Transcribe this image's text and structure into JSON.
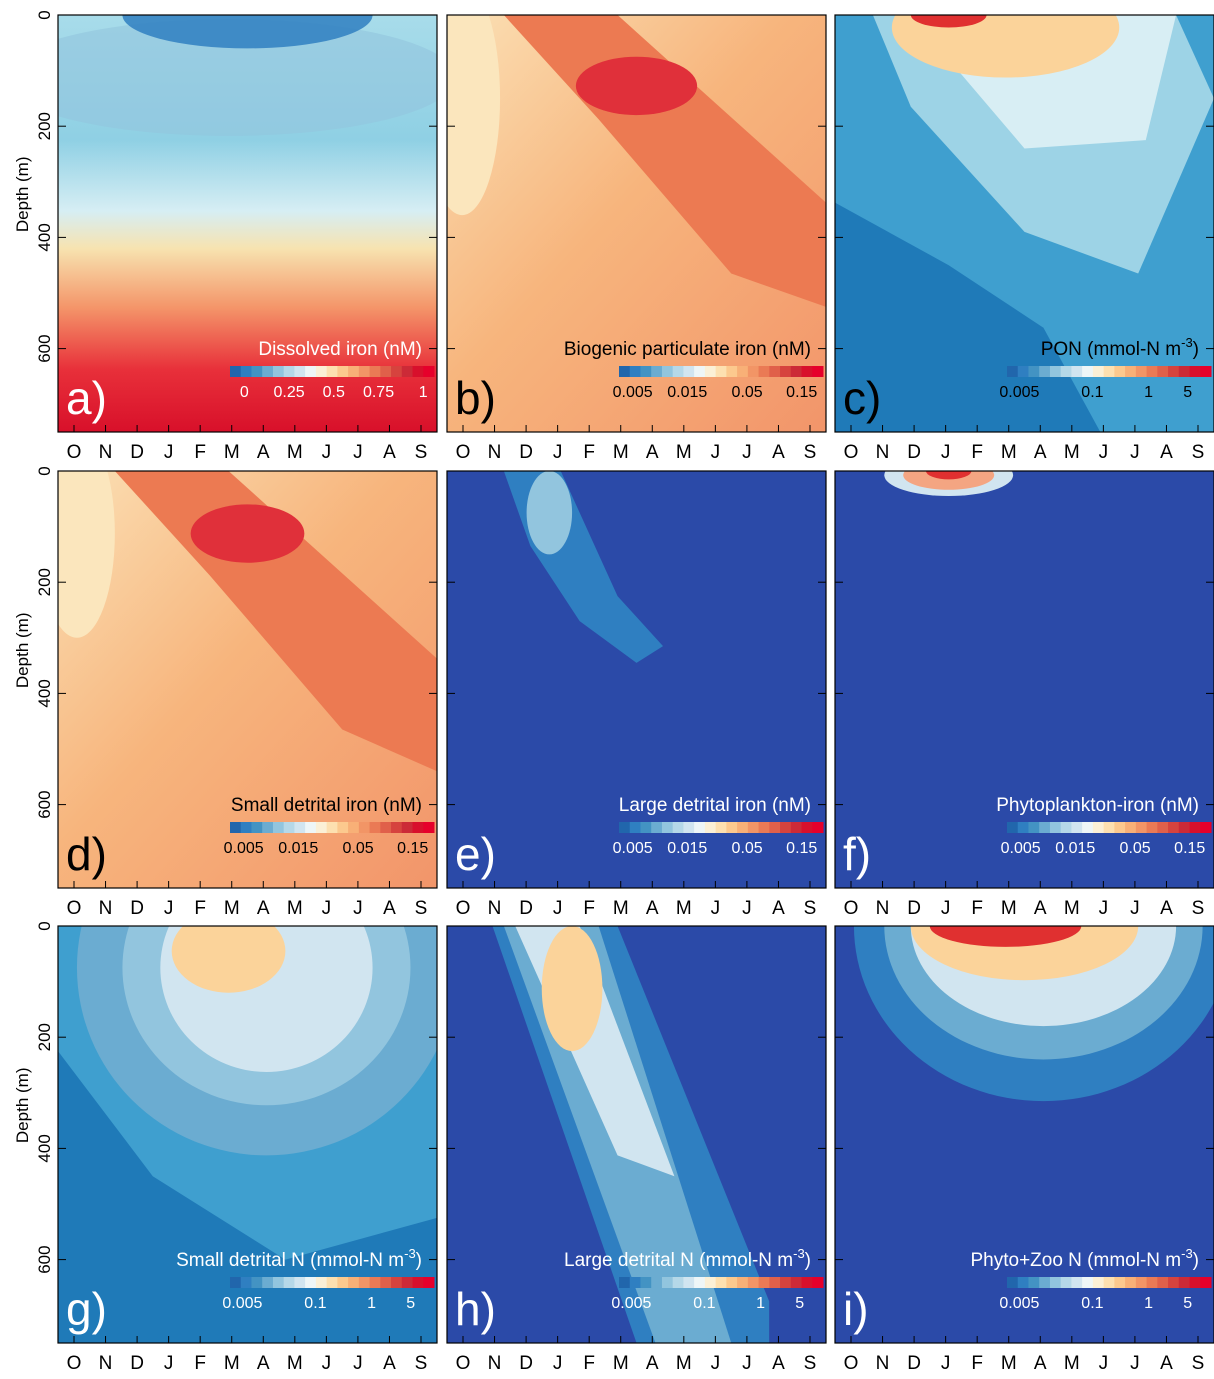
{
  "palette": [
    "#2166ac",
    "#2f7fc1",
    "#4393c3",
    "#6bacd1",
    "#92c5de",
    "#b5d8e8",
    "#d1e5f0",
    "#eef6f7",
    "#fbf0d6",
    "#fde0b0",
    "#fcc98e",
    "#f8b077",
    "#f29566",
    "#ea7a55",
    "#e0604a",
    "#d6433e",
    "#cc2a37",
    "#d8102c",
    "#e6002b"
  ],
  "chart_data": [
    {
      "type": "contour",
      "title": "Dissolved iron (nM)",
      "panel_label": "a)",
      "text_color": "#ffffff",
      "ylabel": "Depth (m)",
      "categories": [
        "O",
        "N",
        "D",
        "J",
        "F",
        "M",
        "A",
        "M",
        "J",
        "J",
        "A",
        "S"
      ],
      "ylim": [
        0,
        750
      ],
      "yticks": [
        0,
        200,
        400,
        600
      ],
      "colorbar": {
        "log": false,
        "clim": [
          -0.08,
          1.06
        ],
        "ticks": [
          0,
          0.25,
          0.5,
          0.75,
          1
        ]
      }
    },
    {
      "type": "contour",
      "title": "Biogenic particulate iron (nM)",
      "panel_label": "b)",
      "text_color": "#000000",
      "categories": [
        "O",
        "N",
        "D",
        "J",
        "F",
        "M",
        "A",
        "M",
        "J",
        "J",
        "A",
        "S"
      ],
      "ylim": [
        0,
        750
      ],
      "yticks": [
        0,
        200,
        400,
        600
      ],
      "colorbar": {
        "log": true,
        "clim": [
          0.0038,
          0.23
        ],
        "ticks": [
          0.005,
          0.015,
          0.05,
          0.15
        ]
      }
    },
    {
      "type": "contour",
      "title": "PON (mmol-N m",
      "title_superscript": "-3",
      "title_suffix": ")",
      "panel_label": "c)",
      "text_color": "#000000",
      "categories": [
        "O",
        "N",
        "D",
        "J",
        "F",
        "M",
        "A",
        "M",
        "J",
        "J",
        "A",
        "S"
      ],
      "ylim": [
        0,
        750
      ],
      "yticks": [
        0,
        200,
        400,
        600
      ],
      "colorbar": {
        "log": true,
        "clim": [
          0.003,
          13
        ],
        "ticks": [
          0.005,
          0.1,
          1,
          5
        ]
      }
    },
    {
      "type": "contour",
      "title": "Small detrital iron (nM)",
      "panel_label": "d)",
      "text_color": "#000000",
      "ylabel": "Depth (m)",
      "categories": [
        "O",
        "N",
        "D",
        "J",
        "F",
        "M",
        "A",
        "M",
        "J",
        "J",
        "A",
        "S"
      ],
      "ylim": [
        0,
        750
      ],
      "yticks": [
        0,
        200,
        400,
        600
      ],
      "colorbar": {
        "log": true,
        "clim": [
          0.0038,
          0.23
        ],
        "ticks": [
          0.005,
          0.015,
          0.05,
          0.15
        ]
      }
    },
    {
      "type": "contour",
      "title": "Large detrital iron (nM)",
      "panel_label": "e)",
      "text_color": "#ffffff",
      "categories": [
        "O",
        "N",
        "D",
        "J",
        "F",
        "M",
        "A",
        "M",
        "J",
        "J",
        "A",
        "S"
      ],
      "ylim": [
        0,
        750
      ],
      "yticks": [
        0,
        200,
        400,
        600
      ],
      "colorbar": {
        "log": true,
        "clim": [
          0.0038,
          0.23
        ],
        "ticks": [
          0.005,
          0.015,
          0.05,
          0.15
        ]
      }
    },
    {
      "type": "contour",
      "title": "Phytoplankton-iron (nM)",
      "panel_label": "f)",
      "text_color": "#ffffff",
      "categories": [
        "O",
        "N",
        "D",
        "J",
        "F",
        "M",
        "A",
        "M",
        "J",
        "J",
        "A",
        "S"
      ],
      "ylim": [
        0,
        750
      ],
      "yticks": [
        0,
        200,
        400,
        600
      ],
      "colorbar": {
        "log": true,
        "clim": [
          0.0038,
          0.23
        ],
        "ticks": [
          0.005,
          0.015,
          0.05,
          0.15
        ]
      }
    },
    {
      "type": "contour",
      "title": "Small detrital N (mmol-N m",
      "title_superscript": "-3",
      "title_suffix": ")",
      "panel_label": "g)",
      "text_color": "#ffffff",
      "ylabel": "Depth (m)",
      "categories": [
        "O",
        "N",
        "D",
        "J",
        "F",
        "M",
        "A",
        "M",
        "J",
        "J",
        "A",
        "S"
      ],
      "ylim": [
        0,
        750
      ],
      "yticks": [
        0,
        200,
        400,
        600
      ],
      "colorbar": {
        "log": true,
        "clim": [
          0.003,
          13
        ],
        "ticks": [
          0.005,
          0.1,
          1,
          5
        ]
      }
    },
    {
      "type": "contour",
      "title": "Large detrital N (mmol-N m",
      "title_superscript": "-3",
      "title_suffix": ")",
      "panel_label": "h)",
      "text_color": "#ffffff",
      "categories": [
        "O",
        "N",
        "D",
        "J",
        "F",
        "M",
        "A",
        "M",
        "J",
        "J",
        "A",
        "S"
      ],
      "ylim": [
        0,
        750
      ],
      "yticks": [
        0,
        200,
        400,
        600
      ],
      "colorbar": {
        "log": true,
        "clim": [
          0.003,
          13
        ],
        "ticks": [
          0.005,
          0.1,
          1,
          5
        ]
      }
    },
    {
      "type": "contour",
      "title": "Phyto+Zoo N (mmol-N m",
      "title_superscript": "-3",
      "title_suffix": ")",
      "panel_label": "i)",
      "text_color": "#ffffff",
      "categories": [
        "O",
        "N",
        "D",
        "J",
        "F",
        "M",
        "A",
        "M",
        "J",
        "J",
        "A",
        "S"
      ],
      "ylim": [
        0,
        750
      ],
      "yticks": [
        0,
        200,
        400,
        600
      ],
      "colorbar": {
        "log": true,
        "clim": [
          0.003,
          13
        ],
        "ticks": [
          0.005,
          0.1,
          1,
          5
        ]
      }
    }
  ]
}
